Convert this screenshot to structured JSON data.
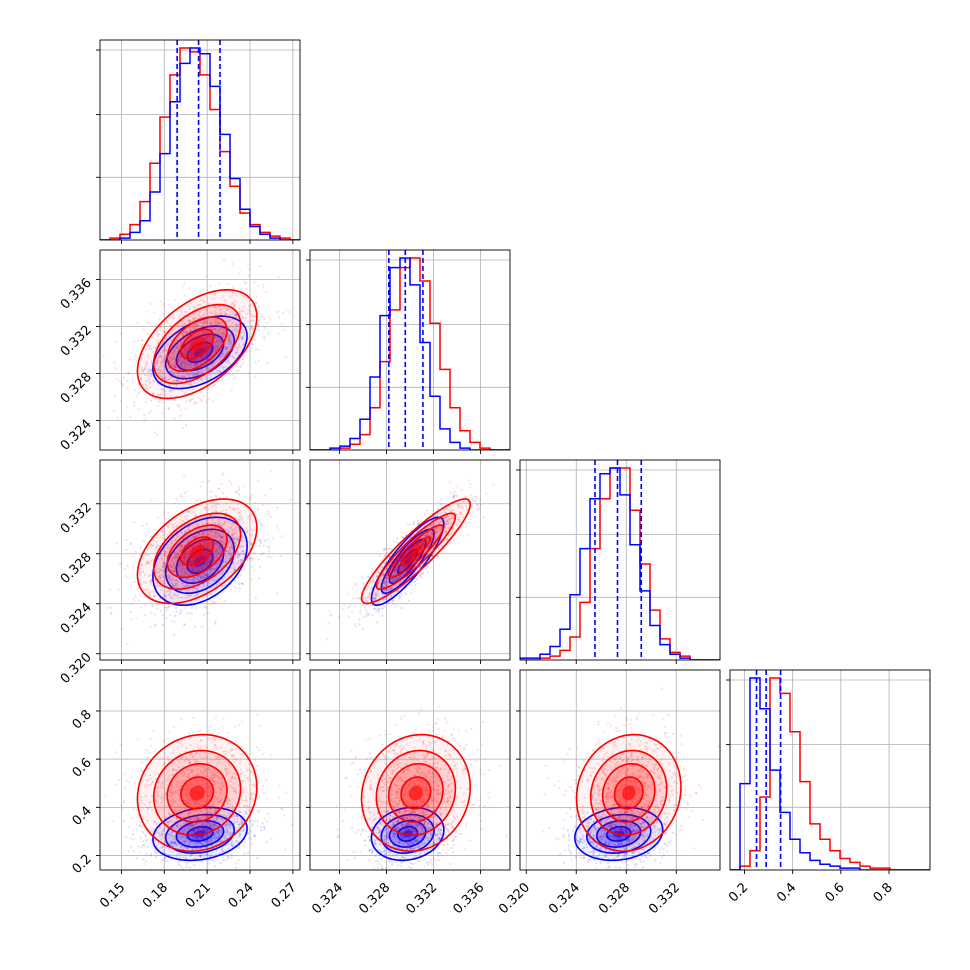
{
  "chart_data": {
    "type": "corner",
    "grid": true,
    "params": [
      {
        "range": [
          0.135,
          0.275
        ],
        "ticks": [
          0.15,
          0.18,
          0.21,
          0.24,
          0.27
        ],
        "tick_labels": [
          "0.15",
          "0.18",
          "0.21",
          "0.24",
          "0.27"
        ]
      },
      {
        "range": [
          0.3215,
          0.3385
        ],
        "ticks": [
          0.324,
          0.328,
          0.332,
          0.336
        ],
        "tick_labels": [
          "0.324",
          "0.328",
          "0.332",
          "0.336"
        ]
      },
      {
        "range": [
          0.3195,
          0.3355
        ],
        "ticks": [
          0.32,
          0.324,
          0.328,
          0.332
        ],
        "tick_labels": [
          "0.320",
          "0.324",
          "0.328",
          "0.332"
        ]
      },
      {
        "range": [
          0.14,
          0.97
        ],
        "ticks": [
          0.2,
          0.4,
          0.6,
          0.8
        ],
        "tick_labels": [
          "0.2",
          "0.4",
          "0.6",
          "0.8"
        ]
      }
    ],
    "series": [
      {
        "color": "#0000ff",
        "mean": [
          0.205,
          0.3298,
          0.3274,
          0.29
        ],
        "std": [
          0.015,
          0.0014,
          0.0016,
          0.05
        ],
        "corr": [
          [
            1,
            0.45,
            0.35,
            0.2
          ],
          [
            0.45,
            1,
            0.85,
            0.15
          ],
          [
            0.35,
            0.85,
            1,
            0.15
          ],
          [
            0.2,
            0.15,
            0.15,
            1
          ]
        ],
        "quantiles": [
          [
            0.189,
            0.204,
            0.219
          ],
          [
            0.3282,
            0.3296,
            0.3311
          ],
          [
            0.3255,
            0.3273,
            0.3292
          ],
          [
            0.25,
            0.29,
            0.35
          ]
        ],
        "hist": [
          {
            "edges": [
              0.135,
              0.275
            ],
            "counts": [
              0,
              0,
              1,
              4,
              10,
              25,
              45,
              72,
              92,
              100,
              97,
              80,
              55,
              32,
              16,
              7,
              3,
              1,
              0,
              0
            ]
          },
          {
            "edges": [
              0.3215,
              0.3385
            ],
            "counts": [
              0,
              0,
              1,
              2,
              6,
              16,
              38,
              70,
              95,
              100,
              86,
              56,
              28,
              11,
              4,
              1,
              0,
              0,
              0,
              0
            ]
          },
          {
            "edges": [
              0.3195,
              0.3355
            ],
            "counts": [
              1,
              1,
              3,
              7,
              16,
              34,
              58,
              84,
              97,
              100,
              86,
              60,
              36,
              18,
              8,
              3,
              1,
              0,
              0,
              0
            ]
          },
          {
            "edges": [
              0.14,
              0.97
            ],
            "counts": [
              0,
              45,
              100,
              84,
              52,
              30,
              16,
              9,
              5,
              3,
              2,
              1,
              1,
              0,
              0,
              0,
              0,
              0,
              0,
              0
            ]
          }
        ]
      },
      {
        "color": "#ff0000",
        "mean": [
          0.203,
          0.3305,
          0.3282,
          0.46
        ],
        "std": [
          0.019,
          0.0021,
          0.0019,
          0.11
        ],
        "corr": [
          [
            1,
            0.5,
            0.45,
            0.1
          ],
          [
            0.5,
            1,
            0.9,
            0.1
          ],
          [
            0.45,
            0.9,
            1,
            0.1
          ],
          [
            0.1,
            0.1,
            0.1,
            1
          ]
        ],
        "quantiles": null,
        "hist": [
          {
            "edges": [
              0.135,
              0.275
            ],
            "counts": [
              0,
              1,
              3,
              8,
              20,
              40,
              64,
              86,
              100,
              98,
              86,
              68,
              46,
              28,
              14,
              8,
              4,
              2,
              1,
              0
            ]
          },
          {
            "edges": [
              0.3215,
              0.3385
            ],
            "counts": [
              0,
              0,
              0,
              1,
              3,
              8,
              22,
              46,
              73,
              95,
              100,
              88,
              66,
              42,
              22,
              10,
              4,
              1,
              0,
              0
            ]
          },
          {
            "edges": [
              0.3195,
              0.3355
            ],
            "counts": [
              0,
              0,
              1,
              2,
              5,
              12,
              30,
              58,
              84,
              100,
              100,
              78,
              50,
              26,
              11,
              4,
              2,
              0,
              0,
              0
            ]
          },
          {
            "edges": [
              0.14,
              0.97
            ],
            "counts": [
              0,
              2,
              10,
              38,
              100,
              92,
              72,
              46,
              24,
              16,
              10,
              6,
              4,
              2,
              1,
              1,
              0,
              0,
              0,
              0
            ]
          }
        ]
      }
    ]
  }
}
